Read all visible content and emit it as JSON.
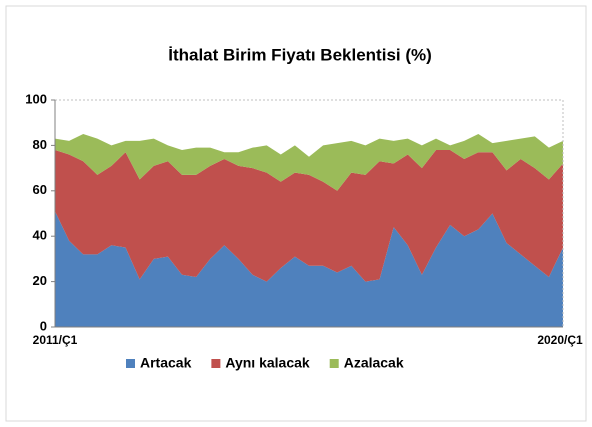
{
  "chart_data": {
    "type": "area",
    "stacked": true,
    "title": "İthalat Birim Fiyatı Beklentisi (%)",
    "categories": [
      "2011/Ç1",
      null,
      null,
      null,
      null,
      null,
      null,
      null,
      null,
      null,
      null,
      null,
      null,
      null,
      null,
      null,
      null,
      null,
      null,
      null,
      null,
      null,
      null,
      null,
      null,
      null,
      null,
      null,
      null,
      null,
      null,
      null,
      null,
      null,
      null,
      null,
      "2020/Ç1"
    ],
    "series": [
      {
        "name": "Artacak",
        "color": "#4f81bd",
        "values": [
          51,
          38,
          32,
          32,
          36,
          35,
          21,
          30,
          31,
          23,
          22,
          30,
          36,
          30,
          23,
          20,
          26,
          31,
          27,
          27,
          24,
          27,
          20,
          21,
          44,
          36,
          23,
          35,
          45,
          40,
          43,
          50,
          37,
          32,
          27,
          22,
          35
        ]
      },
      {
        "name": "Aynı kalacak",
        "color": "#c0504d",
        "values": [
          27,
          38,
          41,
          35,
          35,
          42,
          44,
          41,
          42,
          44,
          45,
          41,
          38,
          41,
          47,
          48,
          38,
          37,
          40,
          37,
          36,
          41,
          47,
          52,
          28,
          40,
          47,
          43,
          33,
          34,
          34,
          27,
          32,
          42,
          43,
          43,
          37
        ]
      },
      {
        "name": "Azalacak",
        "color": "#9bbb59",
        "values": [
          5,
          6,
          12,
          16,
          9,
          5,
          17,
          12,
          7,
          11,
          12,
          8,
          3,
          6,
          9,
          12,
          12,
          12,
          8,
          16,
          21,
          14,
          13,
          10,
          10,
          7,
          10,
          5,
          2,
          8,
          8,
          4,
          13,
          9,
          14,
          14,
          10
        ]
      }
    ],
    "ylim": [
      0,
      100
    ],
    "yticks": [
      0,
      20,
      40,
      60,
      80,
      100
    ],
    "grid": false,
    "legend": "bottom"
  }
}
